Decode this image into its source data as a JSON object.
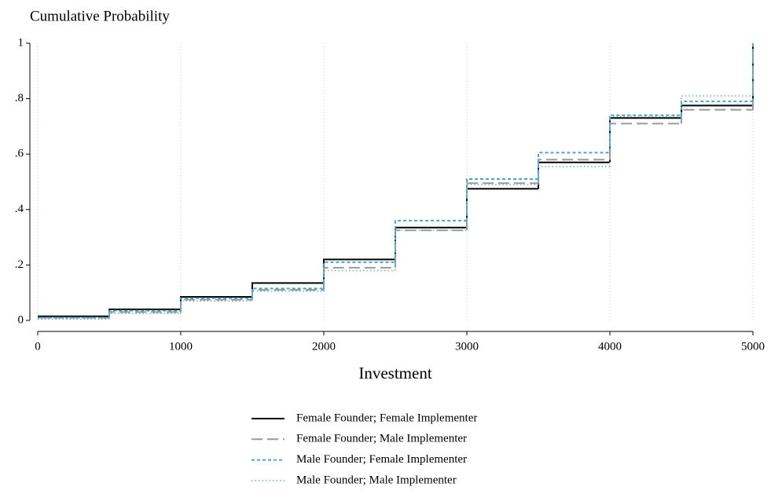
{
  "chart_data": {
    "type": "step",
    "y_label": "Cumulative Probability",
    "x_label": "Investment",
    "x": [
      0,
      500,
      1000,
      1500,
      2000,
      2500,
      3000,
      3500,
      4000,
      4500,
      5000
    ],
    "series": [
      {
        "name": "Female Founder; Female Implementer",
        "color": "#000000",
        "dash": "solid",
        "values": [
          0.015,
          0.04,
          0.085,
          0.135,
          0.22,
          0.335,
          0.475,
          0.57,
          0.73,
          0.775,
          1
        ]
      },
      {
        "name": "Female Founder; Male Implementer",
        "color": "#9a9a9a",
        "dash": "long-dash",
        "values": [
          0.01,
          0.03,
          0.075,
          0.11,
          0.19,
          0.325,
          0.495,
          0.58,
          0.71,
          0.76,
          1
        ]
      },
      {
        "name": "Male Founder; Female Implementer",
        "color": "#4ba3c7",
        "dash": "short-dash",
        "values": [
          0.01,
          0.035,
          0.08,
          0.115,
          0.21,
          0.36,
          0.51,
          0.605,
          0.74,
          0.79,
          1
        ]
      },
      {
        "name": "Male Founder; Male Implementer",
        "color": "#6faac4",
        "dash": "dot",
        "values": [
          0.005,
          0.025,
          0.07,
          0.105,
          0.18,
          0.325,
          0.49,
          0.555,
          0.735,
          0.81,
          1
        ]
      }
    ],
    "xlim": [
      0,
      5000
    ],
    "xticks": [
      0,
      1000,
      2000,
      3000,
      4000,
      5000
    ],
    "ylim": [
      0,
      1
    ],
    "yticks": [
      0,
      {
        "value": 0.2,
        "label": ".2"
      },
      {
        "value": 0.4,
        "label": ".4"
      },
      {
        "value": 0.6,
        "label": ".6"
      },
      {
        "value": 0.8,
        "label": ".8"
      },
      1
    ],
    "grid": "x",
    "legend": "bottom"
  }
}
